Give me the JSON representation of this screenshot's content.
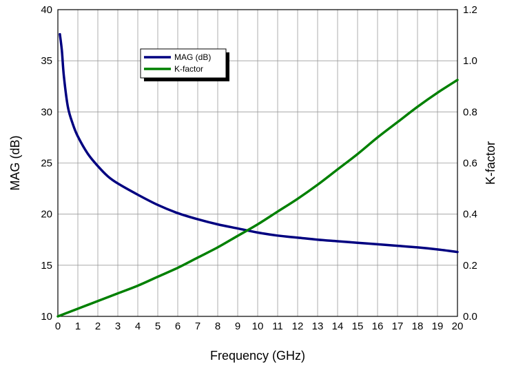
{
  "chart_data": {
    "type": "line",
    "title": "",
    "xlabel": "Frequency (GHz)",
    "ylabel": "MAG (dB)",
    "y2label": "K-factor",
    "xlim": [
      0,
      20
    ],
    "ylim": [
      10,
      40
    ],
    "y2lim": [
      0.0,
      1.2
    ],
    "x_ticks": [
      0,
      1,
      2,
      3,
      4,
      5,
      6,
      7,
      8,
      9,
      10,
      11,
      12,
      13,
      14,
      15,
      16,
      17,
      18,
      19,
      20
    ],
    "y_ticks": [
      10,
      15,
      20,
      25,
      30,
      35,
      40
    ],
    "y2_ticks": [
      "0.0",
      "0.2",
      "0.4",
      "0.6",
      "0.8",
      "1.0",
      "1.2"
    ],
    "grid": true,
    "legend_position": "top-left-center",
    "series": [
      {
        "name": "MAG (dB)",
        "axis": "left",
        "color": "#000080",
        "x": [
          0.1,
          0.2,
          0.3,
          0.5,
          0.75,
          1,
          1.5,
          2,
          2.5,
          3,
          4,
          5,
          6,
          7,
          8,
          9,
          10,
          11,
          12,
          13,
          14,
          15,
          16,
          17,
          18,
          19,
          20
        ],
        "y": [
          37.6,
          36.0,
          33.5,
          30.5,
          28.8,
          27.6,
          25.9,
          24.7,
          23.7,
          23.0,
          21.9,
          20.9,
          20.1,
          19.5,
          19.0,
          18.6,
          18.2,
          17.9,
          17.7,
          17.5,
          17.35,
          17.2,
          17.05,
          16.9,
          16.75,
          16.55,
          16.3
        ]
      },
      {
        "name": "K-factor",
        "axis": "right",
        "color": "#008000",
        "x": [
          0,
          1,
          2,
          3,
          4,
          5,
          6,
          7,
          8,
          9,
          10,
          11,
          12,
          13,
          14,
          15,
          16,
          17,
          18,
          19,
          20
        ],
        "y": [
          0.0,
          0.03,
          0.06,
          0.09,
          0.12,
          0.155,
          0.19,
          0.23,
          0.27,
          0.315,
          0.36,
          0.41,
          0.46,
          0.515,
          0.575,
          0.635,
          0.7,
          0.76,
          0.82,
          0.875,
          0.925
        ]
      }
    ]
  }
}
